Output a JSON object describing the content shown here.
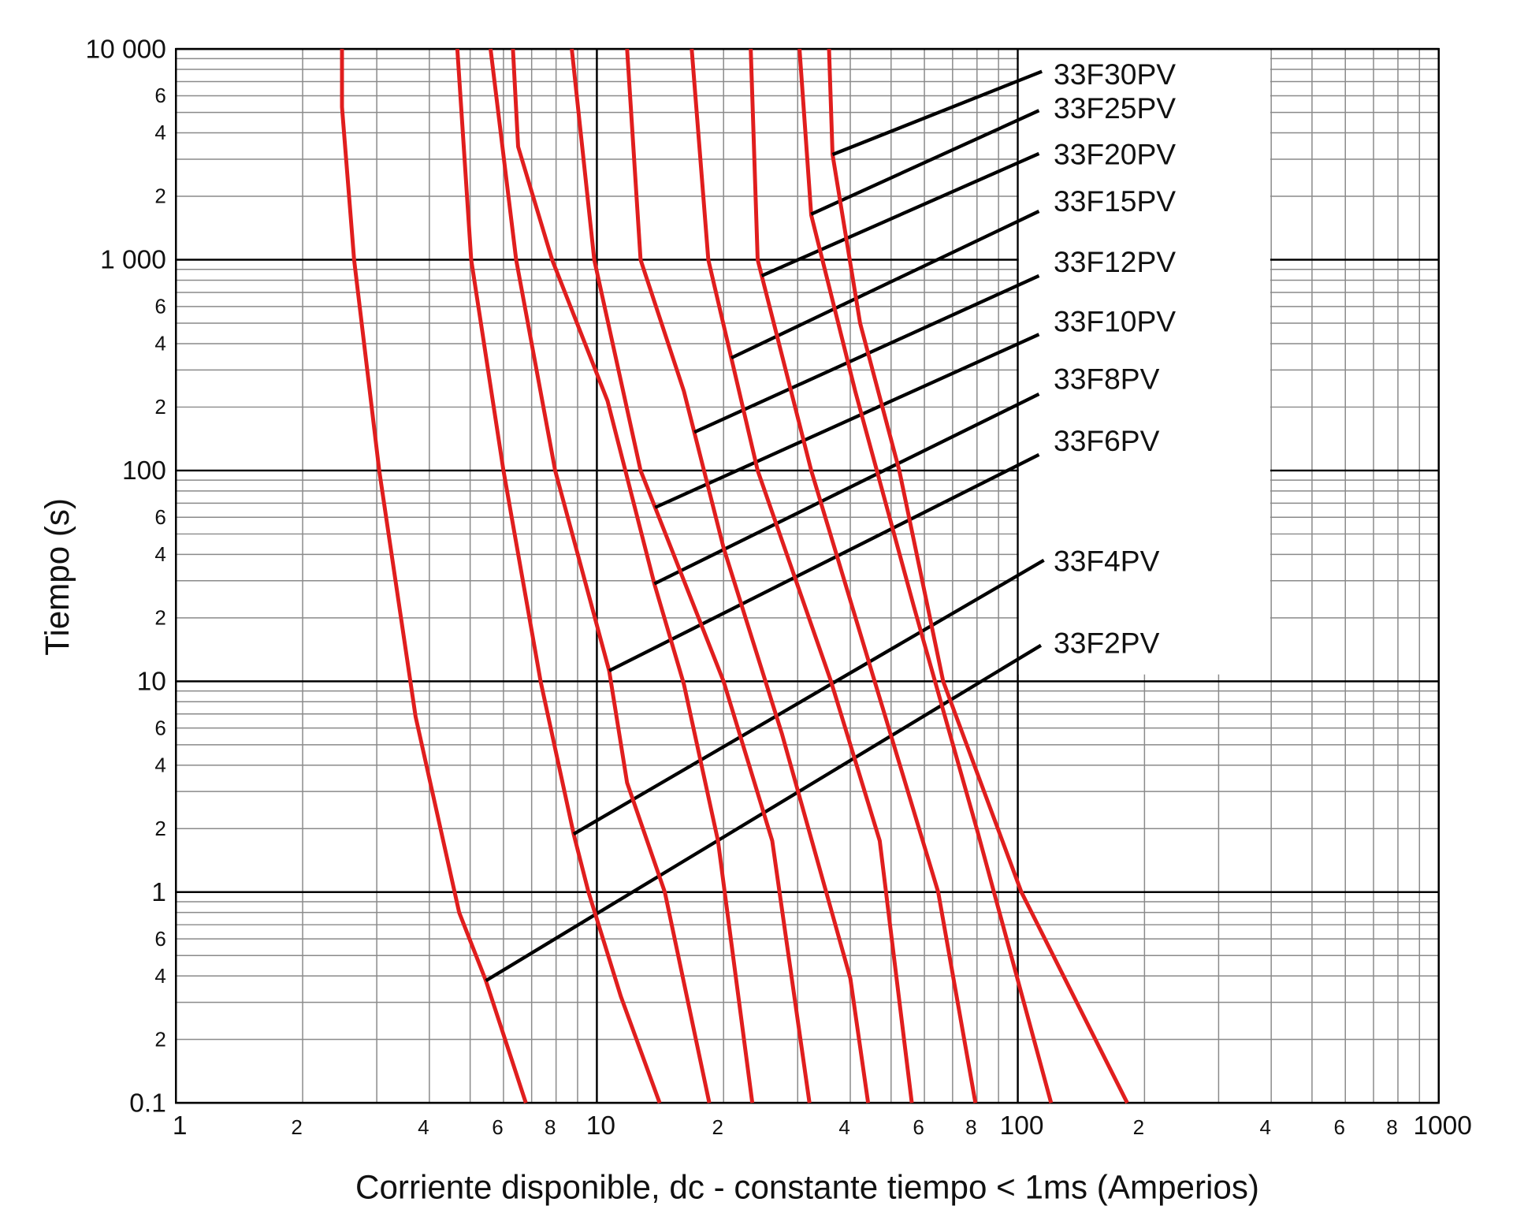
{
  "chart_data": {
    "type": "line",
    "xlabel": "Corriente disponible, dc - constante tiempo < 1ms (Amperios)",
    "ylabel": "Tiempo (s)",
    "xscale": "log",
    "yscale": "log",
    "grid": true,
    "minor_grid": true,
    "xlim": [
      1,
      1000
    ],
    "ylim": [
      0.1,
      10000
    ],
    "xticks": [
      1,
      2,
      4,
      6,
      8,
      10,
      {
        "value": 20,
        "label": "2"
      },
      {
        "value": 40,
        "label": "4"
      },
      {
        "value": 60,
        "label": "6"
      },
      {
        "value": 80,
        "label": "8"
      },
      100,
      {
        "value": 200,
        "label": "2"
      },
      {
        "value": 400,
        "label": "4"
      },
      {
        "value": 600,
        "label": "6"
      },
      {
        "value": 800,
        "label": "8"
      },
      1000
    ],
    "yticks": [
      0.1,
      {
        "value": 0.2,
        "label": "2"
      },
      {
        "value": 0.4,
        "label": "4"
      },
      {
        "value": 0.6,
        "label": "6"
      },
      1,
      2,
      4,
      6,
      10,
      {
        "value": 20,
        "label": "2"
      },
      {
        "value": 40,
        "label": "4"
      },
      {
        "value": 60,
        "label": "6"
      },
      100,
      {
        "value": 200,
        "label": "2"
      },
      {
        "value": 400,
        "label": "4"
      },
      {
        "value": 600,
        "label": "6"
      },
      {
        "value": 1000,
        "label": "1 000"
      },
      {
        "value": 2000,
        "label": "2"
      },
      {
        "value": 4000,
        "label": "4"
      },
      {
        "value": 6000,
        "label": "6"
      },
      {
        "value": 10000,
        "label": "10 000"
      }
    ],
    "series": [
      {
        "name": "33F2PV",
        "color": "#e01e1e",
        "x": [
          2.48,
          2.48,
          2.65,
          3.04,
          3.71,
          4.71,
          5.45,
          6.78
        ],
        "values": [
          10000,
          5300,
          1000,
          100,
          6.8,
          0.8,
          0.38,
          0.1
        ]
      },
      {
        "name": "33F4PV",
        "color": "#e01e1e",
        "x": [
          4.66,
          5.03,
          6.0,
          7.35,
          8.81,
          9.55,
          11.4,
          14.1
        ],
        "values": [
          10000,
          1000,
          100,
          10,
          1.88,
          1,
          0.32,
          0.1
        ]
      },
      {
        "name": "33F6PV",
        "color": "#e01e1e",
        "x": [
          5.59,
          6.43,
          7.96,
          10.7,
          11.8,
          14.5,
          18.5
        ],
        "values": [
          10000,
          1000,
          100,
          11.2,
          3.3,
          1,
          0.1
        ]
      },
      {
        "name": "33F8PV",
        "color": "#e01e1e",
        "x": [
          6.32,
          6.5,
          7.83,
          10.6,
          13.7,
          16.1,
          19.4,
          23.4
        ],
        "values": [
          10000,
          3440,
          1000,
          214,
          29,
          9.7,
          1.75,
          0.1
        ]
      },
      {
        "name": "33F10PV",
        "color": "#e01e1e",
        "x": [
          8.72,
          9.86,
          12.7,
          20.0,
          26.1,
          32.0
        ],
        "values": [
          10000,
          1000,
          100,
          10,
          1.75,
          0.1
        ]
      },
      {
        "name": "33F12PV",
        "color": "#e01e1e",
        "x": [
          11.8,
          12.7,
          16.1,
          20.0,
          27.5,
          40.0,
          44.1
        ],
        "values": [
          10000,
          1000,
          238,
          43,
          5.66,
          0.39,
          0.1
        ]
      },
      {
        "name": "33F15PV",
        "color": "#e01e1e",
        "x": [
          16.8,
          18.4,
          24.1,
          36.0,
          47.0,
          56.0
        ],
        "values": [
          10000,
          1000,
          100,
          10,
          1.75,
          0.1
        ]
      },
      {
        "name": "33F20PV",
        "color": "#e01e1e",
        "x": [
          23.2,
          24.1,
          32.3,
          45.7,
          64.7,
          79.3
        ],
        "values": [
          10000,
          1000,
          100,
          10,
          1,
          0.1
        ]
      },
      {
        "name": "33F25PV",
        "color": "#e01e1e",
        "x": [
          30.3,
          32.3,
          41.1,
          56.6,
          80.2,
          120
        ],
        "values": [
          10000,
          1630,
          238,
          22.7,
          1.94,
          0.1
        ]
      },
      {
        "name": "33F30PV",
        "color": "#e01e1e",
        "x": [
          35.6,
          36.3,
          42.2,
          52.3,
          66.5,
          102,
          182
        ],
        "values": [
          10000,
          3160,
          500,
          100,
          10,
          1,
          0.1
        ]
      }
    ]
  }
}
